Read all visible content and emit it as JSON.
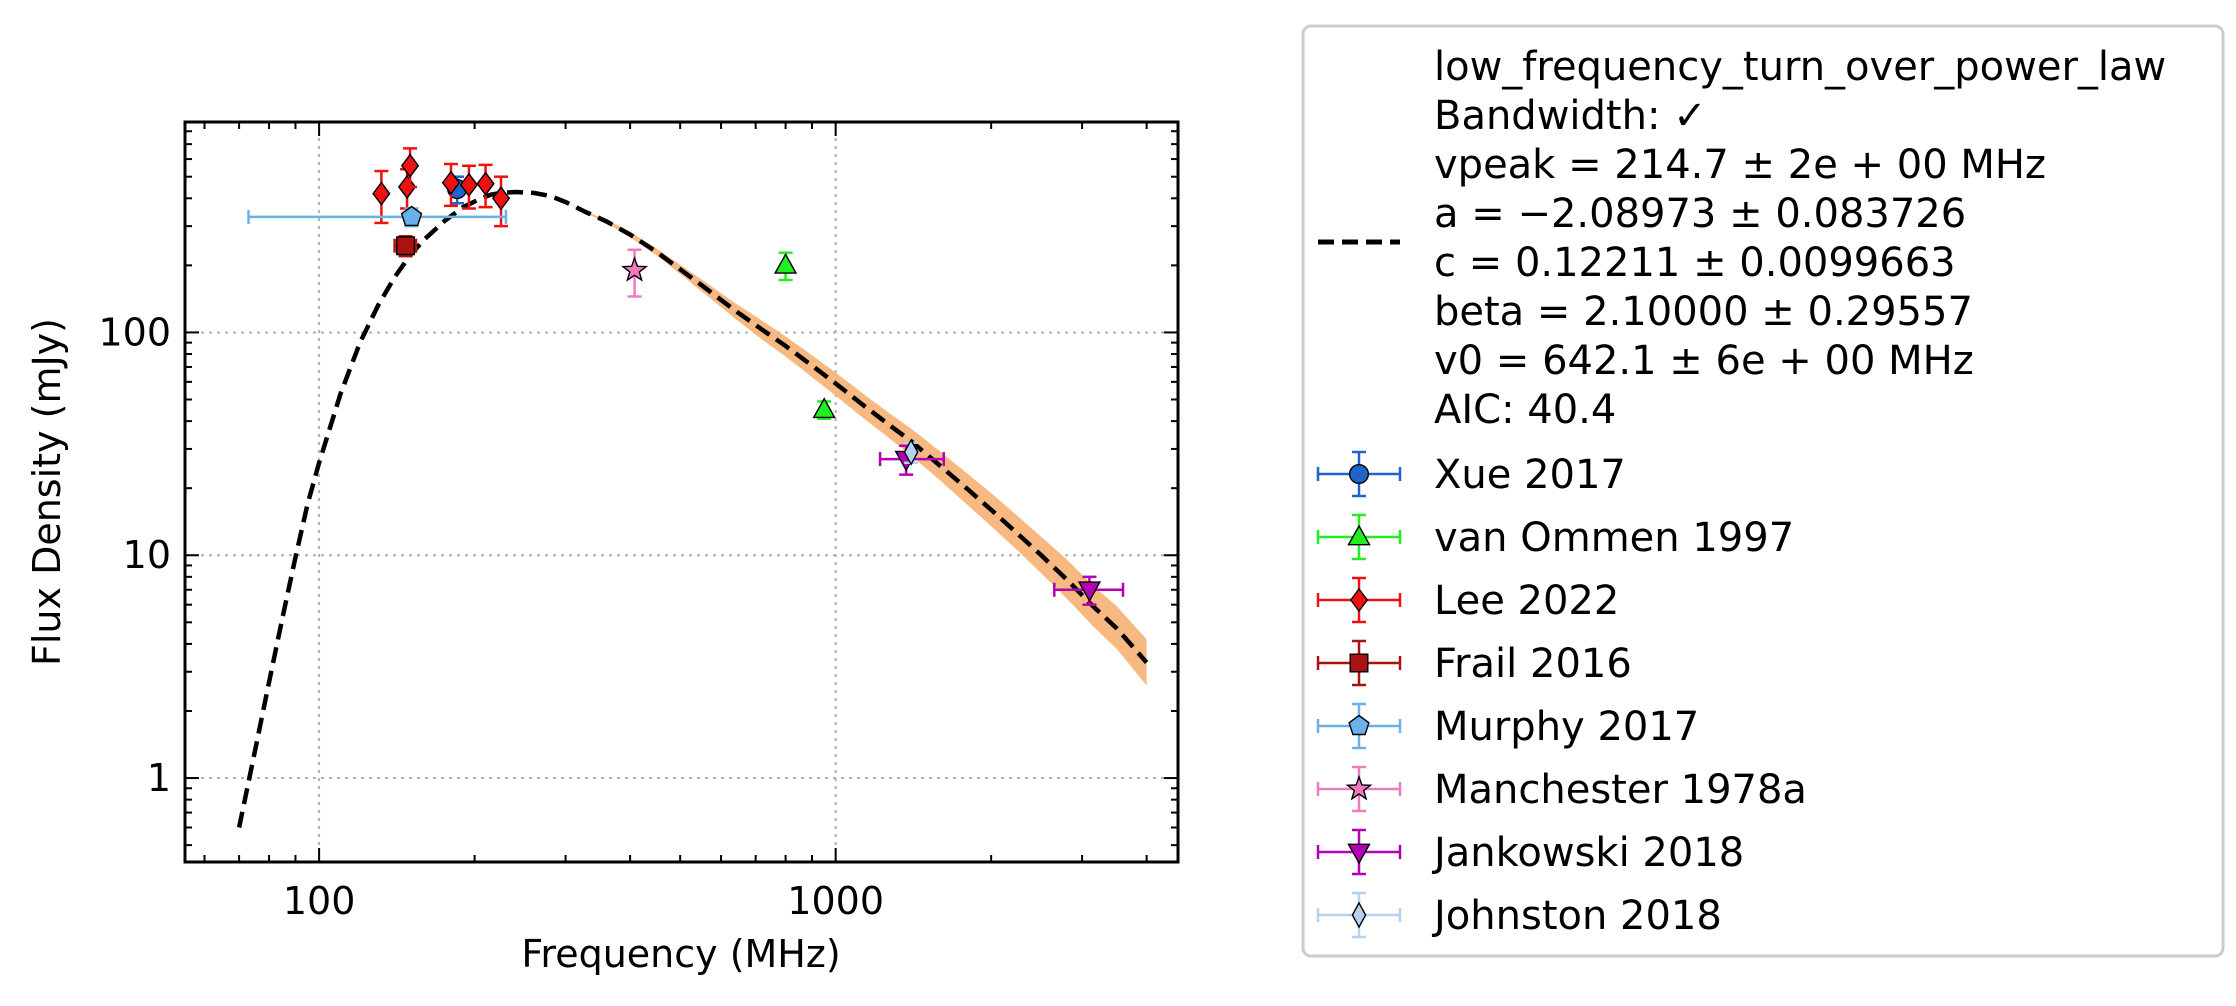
{
  "chart_data": {
    "type": "scatter",
    "title": "",
    "xlabel": "Frequency (MHz)",
    "ylabel": "Flux Density (mJy)",
    "xscale": "log",
    "yscale": "log",
    "xlim": [
      55,
      4600
    ],
    "ylim": [
      0.42,
      880
    ],
    "grid": true,
    "x_ticks": [
      {
        "value": 100,
        "label": "100"
      },
      {
        "value": 1000,
        "label": "1000"
      }
    ],
    "y_ticks": [
      {
        "value": 1,
        "label": "1"
      },
      {
        "value": 10,
        "label": "10"
      },
      {
        "value": 100,
        "label": "100"
      }
    ],
    "legend_position": "outside-right",
    "fit": {
      "name": "low_frequency_turn_over_power_law",
      "text_lines": [
        "low_frequency_turn_over_power_law",
        "Bandwidth: ✓",
        "vpeak = 214.7 ± 2e + 00 MHz",
        "a = −2.08973 ± 0.083726",
        "c = 0.12211 ± 0.0099663",
        "beta = 2.10000 ± 0.29557",
        "v0 = 642.1 ± 6e + 00 MHz",
        "AIC: 40.4"
      ],
      "x": [
        70,
        75,
        80,
        85,
        90,
        95,
        100,
        110,
        120,
        130,
        140,
        150,
        160,
        175,
        190,
        205,
        215,
        225,
        240,
        260,
        280,
        300,
        330,
        360,
        400,
        450,
        500,
        560,
        640,
        720,
        800,
        900,
        1000,
        1120,
        1260,
        1400,
        1600,
        1800,
        2000,
        2250,
        2500,
        2800,
        3150,
        3500,
        4000
      ],
      "y": [
        0.6,
        1.3,
        2.7,
        5.3,
        9.8,
        17,
        26,
        53,
        90,
        132,
        177,
        222,
        262,
        317,
        365,
        398,
        415,
        423,
        427,
        423,
        410,
        385,
        345,
        315,
        275,
        230,
        192,
        158,
        125,
        103,
        87,
        71,
        59,
        48,
        39,
        32.5,
        25,
        19.8,
        16,
        12.5,
        10,
        7.8,
        5.9,
        4.7,
        3.3
      ],
      "band_lower": [
        0.6,
        1.3,
        2.7,
        5.3,
        9.8,
        17,
        26,
        53,
        90,
        132,
        177,
        222,
        262,
        317,
        365,
        398,
        415,
        423,
        427,
        423,
        410,
        385,
        342,
        310,
        268,
        222,
        183,
        148,
        115,
        93,
        78,
        63,
        52,
        42,
        34,
        28,
        21.5,
        16.8,
        13.5,
        10.5,
        8.3,
        6.4,
        4.8,
        3.8,
        2.6
      ],
      "band_upper": [
        0.6,
        1.3,
        2.7,
        5.3,
        9.8,
        17,
        26,
        53,
        90,
        132,
        177,
        222,
        262,
        317,
        365,
        398,
        415,
        423,
        427,
        423,
        410,
        385,
        348,
        320,
        283,
        238,
        201,
        168,
        135,
        113,
        96,
        79,
        66,
        54,
        44,
        37,
        29,
        23.2,
        19,
        15,
        12.1,
        9.6,
        7.3,
        5.9,
        4.2
      ],
      "line_color": "#000000",
      "band_color": "#f7b57a"
    },
    "series": [
      {
        "name": "Xue 2017",
        "marker": "circle",
        "color": "#1f64c8",
        "points": [
          {
            "x": 185,
            "y": 440,
            "xerr_lo": 0,
            "xerr_hi": 0,
            "yerr_lo": 60,
            "yerr_hi": 60
          }
        ]
      },
      {
        "name": "van Ommen 1997",
        "marker": "triangle-up",
        "color": "#22ee22",
        "points": [
          {
            "x": 800,
            "y": 200,
            "xerr_lo": 0,
            "xerr_hi": 0,
            "yerr_lo": 28,
            "yerr_hi": 28
          },
          {
            "x": 950,
            "y": 45,
            "xerr_lo": 0,
            "xerr_hi": 0,
            "yerr_lo": 4,
            "yerr_hi": 4
          }
        ]
      },
      {
        "name": "Lee 2022",
        "marker": "diamond",
        "color": "#ee1111",
        "points": [
          {
            "x": 132,
            "y": 420,
            "xerr_lo": 0,
            "xerr_hi": 0,
            "yerr_lo": 110,
            "yerr_hi": 110
          },
          {
            "x": 148,
            "y": 450,
            "xerr_lo": 0,
            "xerr_hi": 0,
            "yerr_lo": 90,
            "yerr_hi": 90
          },
          {
            "x": 150,
            "y": 560,
            "xerr_lo": 0,
            "xerr_hi": 0,
            "yerr_lo": 110,
            "yerr_hi": 110
          },
          {
            "x": 180,
            "y": 470,
            "xerr_lo": 0,
            "xerr_hi": 0,
            "yerr_lo": 100,
            "yerr_hi": 100
          },
          {
            "x": 195,
            "y": 460,
            "xerr_lo": 0,
            "xerr_hi": 0,
            "yerr_lo": 100,
            "yerr_hi": 100
          },
          {
            "x": 210,
            "y": 465,
            "xerr_lo": 0,
            "xerr_hi": 0,
            "yerr_lo": 100,
            "yerr_hi": 100
          },
          {
            "x": 225,
            "y": 400,
            "xerr_lo": 0,
            "xerr_hi": 0,
            "yerr_lo": 100,
            "yerr_hi": 100
          }
        ]
      },
      {
        "name": "Frail 2016",
        "marker": "square",
        "color": "#aa1111",
        "points": [
          {
            "x": 147,
            "y": 245,
            "xerr_lo": 7,
            "xerr_hi": 7,
            "yerr_lo": 25,
            "yerr_hi": 25
          }
        ]
      },
      {
        "name": "Murphy 2017",
        "marker": "pentagon",
        "color": "#6ab0ea",
        "points": [
          {
            "x": 151,
            "y": 330,
            "xerr_lo": 78,
            "xerr_hi": 79,
            "yerr_lo": 30,
            "yerr_hi": 30
          }
        ]
      },
      {
        "name": "Manchester 1978a",
        "marker": "star",
        "color": "#f07ac0",
        "points": [
          {
            "x": 408,
            "y": 190,
            "xerr_lo": 0,
            "xerr_hi": 0,
            "yerr_lo": 45,
            "yerr_hi": 45
          }
        ]
      },
      {
        "name": "Jankowski 2018",
        "marker": "triangle-down",
        "color": "#b400b4",
        "points": [
          {
            "x": 1369,
            "y": 27,
            "xerr_lo": 150,
            "xerr_hi": 250,
            "yerr_lo": 4,
            "yerr_hi": 4
          },
          {
            "x": 3100,
            "y": 7,
            "xerr_lo": 450,
            "xerr_hi": 500,
            "yerr_lo": 1,
            "yerr_hi": 1
          }
        ]
      },
      {
        "name": "Johnston 2018",
        "marker": "thin-diamond",
        "color": "#b4d2f0",
        "points": [
          {
            "x": 1400,
            "y": 29,
            "xerr_lo": 0,
            "xerr_hi": 0,
            "yerr_lo": 3,
            "yerr_hi": 3
          }
        ]
      }
    ]
  }
}
